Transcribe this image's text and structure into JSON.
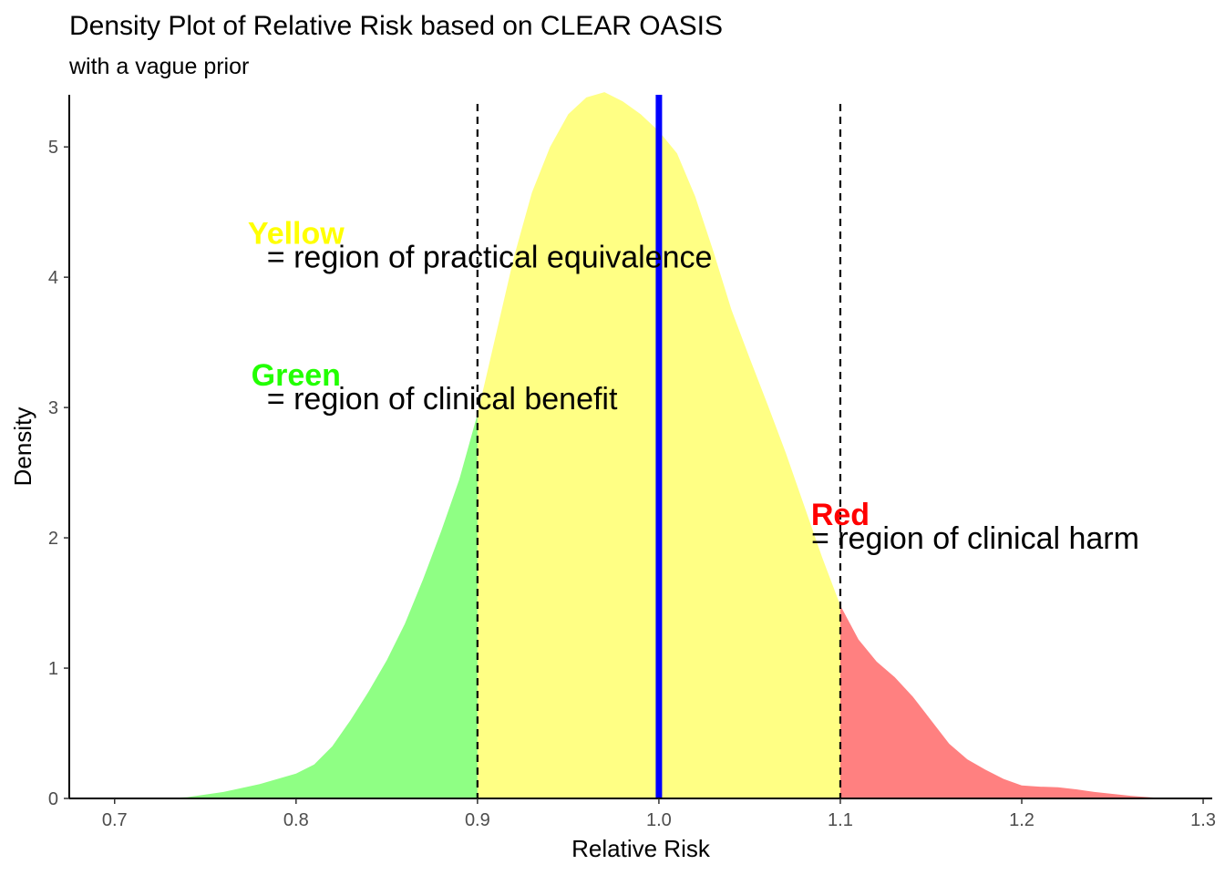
{
  "chart_data": {
    "type": "area",
    "title": "Density Plot of Relative Risk based on CLEAR OASIS",
    "subtitle": "with a vague prior",
    "xlabel": "Relative Risk",
    "ylabel": "Density",
    "xlim": [
      0.675,
      1.305
    ],
    "ylim": [
      0,
      5.4
    ],
    "x_ticks": [
      0.7,
      0.8,
      0.9,
      1.0,
      1.1,
      1.2,
      1.3
    ],
    "x_tick_labels": [
      "0.7",
      "0.8",
      "0.9",
      "1.0",
      "1.1",
      "1.2",
      "1.3"
    ],
    "y_ticks": [
      0,
      1,
      2,
      3,
      4,
      5
    ],
    "y_tick_labels": [
      "0",
      "1",
      "2",
      "3",
      "4",
      "5"
    ],
    "grid": false,
    "density": {
      "x": [
        0.725,
        0.74,
        0.76,
        0.78,
        0.8,
        0.81,
        0.82,
        0.83,
        0.84,
        0.85,
        0.86,
        0.87,
        0.88,
        0.89,
        0.9,
        0.91,
        0.92,
        0.93,
        0.94,
        0.95,
        0.96,
        0.97,
        0.98,
        0.99,
        1.0,
        1.01,
        1.02,
        1.03,
        1.04,
        1.05,
        1.06,
        1.07,
        1.08,
        1.09,
        1.1,
        1.11,
        1.12,
        1.13,
        1.14,
        1.15,
        1.16,
        1.17,
        1.18,
        1.19,
        1.2,
        1.21,
        1.22,
        1.23,
        1.24,
        1.25,
        1.26,
        1.27,
        1.28
      ],
      "y": [
        0.0,
        0.01,
        0.05,
        0.11,
        0.19,
        0.26,
        0.4,
        0.6,
        0.82,
        1.06,
        1.34,
        1.68,
        2.05,
        2.45,
        2.95,
        3.55,
        4.15,
        4.65,
        5.0,
        5.25,
        5.38,
        5.42,
        5.35,
        5.25,
        5.12,
        4.95,
        4.62,
        4.2,
        3.75,
        3.38,
        3.02,
        2.65,
        2.25,
        1.85,
        1.48,
        1.22,
        1.05,
        0.93,
        0.78,
        0.6,
        0.42,
        0.3,
        0.22,
        0.15,
        0.1,
        0.09,
        0.085,
        0.07,
        0.05,
        0.035,
        0.02,
        0.01,
        0.0
      ]
    },
    "regions": [
      {
        "name": "benefit",
        "from": 0.725,
        "to": 0.9,
        "color": "#8fff84"
      },
      {
        "name": "equivalence",
        "from": 0.9,
        "to": 1.1,
        "color": "#ffff84"
      },
      {
        "name": "harm",
        "from": 1.1,
        "to": 1.28,
        "color": "#ff8080"
      }
    ],
    "reference_lines": [
      {
        "x": 0.9,
        "style": "dashed",
        "color": "#000000"
      },
      {
        "x": 1.1,
        "style": "dashed",
        "color": "#000000"
      },
      {
        "x": 1.0,
        "style": "solid",
        "color": "#0000ff"
      }
    ],
    "annotations": [
      {
        "key": "yellow",
        "word": "Yellow",
        "word_color": "#ffff00",
        "text": "= region of practical equivalence",
        "x": 0.8,
        "y": 4.16
      },
      {
        "key": "green",
        "word": "Green",
        "word_color": "#22ff00",
        "text": "= region of clinical benefit",
        "x": 0.8,
        "y": 3.07
      },
      {
        "key": "red",
        "word": "Red",
        "word_color": "#ff0000",
        "text": "= region of clinical harm",
        "x": 1.1,
        "y": 2.0
      }
    ]
  }
}
